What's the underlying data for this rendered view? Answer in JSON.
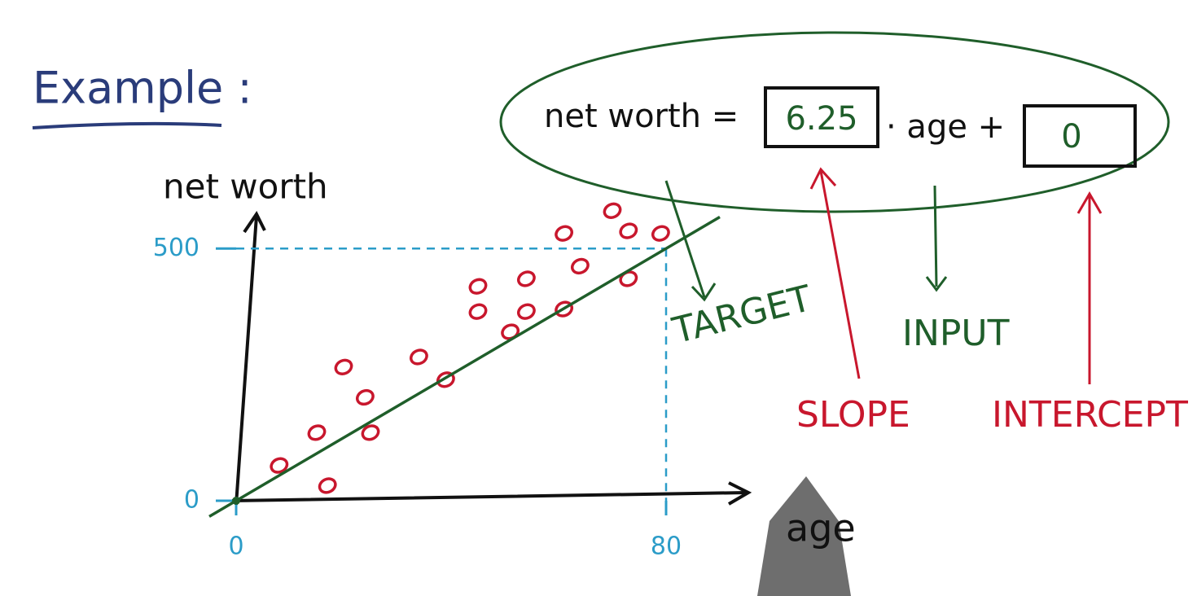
{
  "heading": "Example :",
  "equation": {
    "left": "net worth =",
    "slope": 6.25,
    "middle": "· age +",
    "intercept": 0
  },
  "annotations": {
    "target": "TARGET",
    "input": "INPUT",
    "slope": "SLOPE",
    "intercept": "INTERCEPT"
  },
  "chart_data": {
    "type": "scatter",
    "x_label": "age",
    "y_label": "net worth",
    "x": [
      8,
      17,
      15,
      25,
      24,
      20,
      34,
      39,
      45,
      45,
      54,
      51,
      54,
      61,
      61,
      64,
      73,
      70,
      73,
      79
    ],
    "y": [
      70,
      30,
      135,
      135,
      205,
      265,
      285,
      240,
      425,
      375,
      440,
      335,
      375,
      380,
      530,
      465,
      440,
      575,
      535,
      530
    ],
    "color": "#c8172d",
    "fit_color": "#1f5e2a",
    "xlim": [
      0,
      95
    ],
    "ylim": [
      0,
      565
    ],
    "xticks": [
      0,
      80
    ],
    "yticks": [
      0,
      500
    ],
    "tick_color": "#2b9cc8",
    "guides": true
  }
}
